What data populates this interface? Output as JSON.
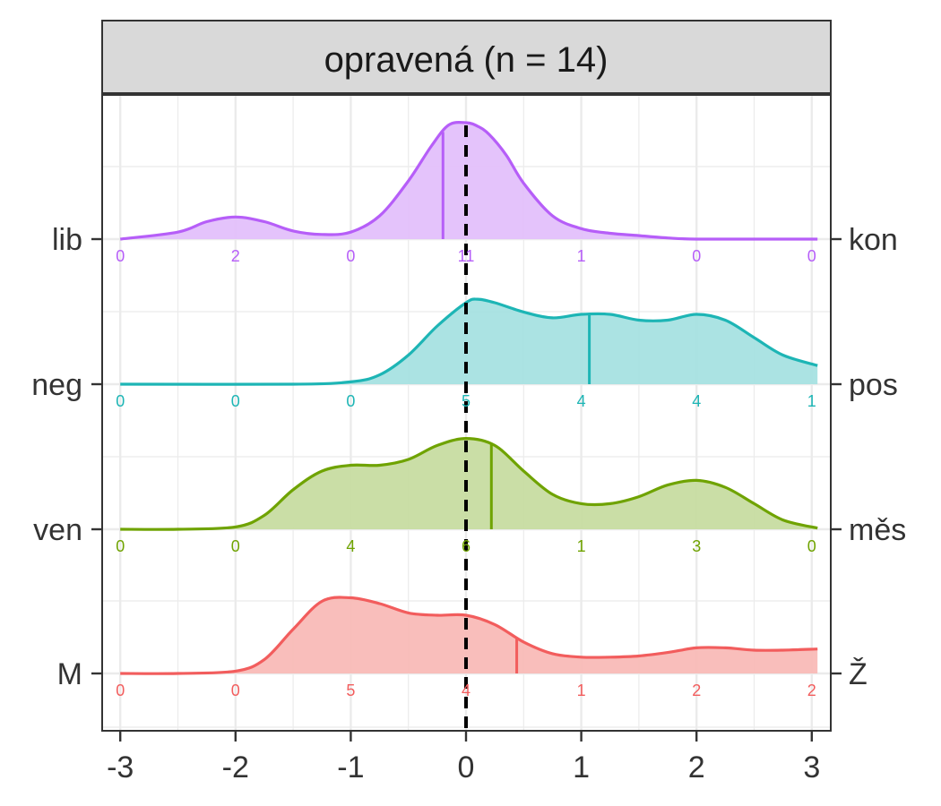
{
  "chart_data": {
    "type": "ridgeline-density",
    "panel_title": "opravená (n = 14)",
    "xlim": [
      -3.1,
      3.1
    ],
    "x_ticks": [
      -3,
      -2,
      -1,
      0,
      1,
      2,
      3
    ],
    "x_tick_labels": [
      "-3",
      "-2",
      "-1",
      "0",
      "1",
      "2",
      "3"
    ],
    "reference_line_x": 0,
    "grid": true,
    "series": [
      {
        "left_label": "lib",
        "right_label": "kon",
        "color": "#B65EF8",
        "fill": "#E2BEFB",
        "mean": -0.2,
        "counts": [
          "0",
          "2",
          "0",
          "11",
          "1",
          "0",
          "0"
        ],
        "density_x": [
          -3.0,
          -2.5,
          -2.25,
          -2.0,
          -1.75,
          -1.5,
          -1.25,
          -1.0,
          -0.75,
          -0.5,
          -0.3,
          -0.15,
          0.0,
          0.1,
          0.2,
          0.35,
          0.5,
          0.75,
          1.0,
          1.25,
          1.5,
          1.75,
          2.0,
          2.5,
          3.05
        ],
        "density_y": [
          0.0,
          0.06,
          0.15,
          0.19,
          0.15,
          0.07,
          0.04,
          0.06,
          0.2,
          0.5,
          0.8,
          0.98,
          1.0,
          0.97,
          0.9,
          0.72,
          0.48,
          0.2,
          0.09,
          0.05,
          0.03,
          0.01,
          0.0,
          0.0,
          0.0
        ]
      },
      {
        "left_label": "neg",
        "right_label": "pos",
        "color": "#1DB5B5",
        "fill": "#A4E1E1",
        "mean": 1.07,
        "counts": [
          "0",
          "0",
          "0",
          "5",
          "4",
          "4",
          "1"
        ],
        "density_x": [
          -3.0,
          -1.5,
          -1.0,
          -0.75,
          -0.5,
          -0.25,
          0.0,
          0.1,
          0.25,
          0.5,
          0.75,
          1.0,
          1.25,
          1.5,
          1.75,
          2.0,
          2.25,
          2.5,
          2.75,
          3.05
        ],
        "density_y": [
          0.0,
          0.0,
          0.02,
          0.08,
          0.25,
          0.5,
          0.7,
          0.73,
          0.7,
          0.62,
          0.57,
          0.6,
          0.6,
          0.55,
          0.55,
          0.6,
          0.55,
          0.4,
          0.25,
          0.16
        ]
      },
      {
        "left_label": "ven",
        "right_label": "měs",
        "color": "#6FA300",
        "fill": "#C5DB9E",
        "mean": 0.22,
        "counts": [
          "0",
          "0",
          "4",
          "6",
          "1",
          "3",
          "0"
        ],
        "density_x": [
          -3.0,
          -2.5,
          -2.0,
          -1.75,
          -1.5,
          -1.25,
          -1.0,
          -0.75,
          -0.5,
          -0.25,
          0.0,
          0.25,
          0.5,
          0.75,
          1.0,
          1.25,
          1.5,
          1.75,
          2.0,
          2.25,
          2.5,
          2.75,
          3.05
        ],
        "density_y": [
          0.0,
          0.0,
          0.02,
          0.12,
          0.34,
          0.5,
          0.55,
          0.55,
          0.6,
          0.72,
          0.78,
          0.72,
          0.5,
          0.3,
          0.22,
          0.22,
          0.28,
          0.38,
          0.42,
          0.36,
          0.22,
          0.08,
          0.01
        ]
      },
      {
        "left_label": "M",
        "right_label": "Ž",
        "color": "#F25D5D",
        "fill": "#F8B9B5",
        "mean": 0.44,
        "counts": [
          "0",
          "0",
          "5",
          "4",
          "1",
          "2",
          "2"
        ],
        "density_x": [
          -3.0,
          -2.5,
          -2.0,
          -1.75,
          -1.5,
          -1.25,
          -1.0,
          -0.75,
          -0.5,
          -0.25,
          0.0,
          0.25,
          0.5,
          0.75,
          1.0,
          1.25,
          1.5,
          1.75,
          2.0,
          2.25,
          2.5,
          2.75,
          3.05
        ],
        "density_y": [
          0.0,
          0.0,
          0.02,
          0.12,
          0.38,
          0.62,
          0.65,
          0.6,
          0.52,
          0.5,
          0.5,
          0.42,
          0.27,
          0.17,
          0.14,
          0.14,
          0.15,
          0.18,
          0.22,
          0.22,
          0.2,
          0.2,
          0.21
        ]
      }
    ]
  }
}
